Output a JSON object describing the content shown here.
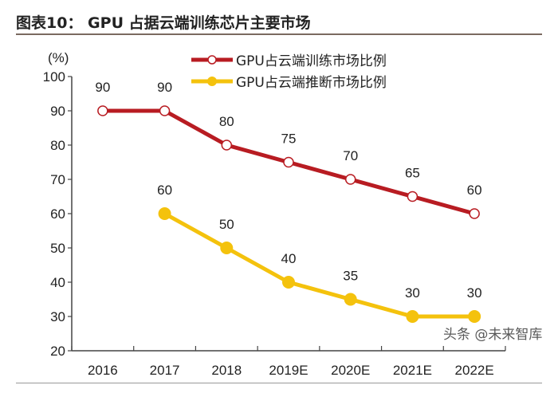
{
  "title": "图表10：  GPU 占据云端训练芯片主要市场",
  "watermark": "头条 @未来智库",
  "chart_data": {
    "type": "line",
    "title": "图表10：  GPU 占据云端训练芯片主要市场",
    "ylabel": "(%)",
    "xlabel": "",
    "ylim": [
      20,
      100
    ],
    "yticks": [
      20,
      30,
      40,
      50,
      60,
      70,
      80,
      90,
      100
    ],
    "categories": [
      "2016",
      "2017",
      "2018",
      "2019E",
      "2020E",
      "2021E",
      "2022E"
    ],
    "grid": false,
    "legend_position": "top-right",
    "series": [
      {
        "name": "GPU占云端训练市场比例",
        "color": "#b81c22",
        "values": [
          90,
          90,
          80,
          75,
          70,
          65,
          60
        ]
      },
      {
        "name": "GPU占云端推断市场比例",
        "color": "#f4c20d",
        "values": [
          null,
          60,
          50,
          40,
          35,
          30,
          30
        ]
      }
    ]
  }
}
